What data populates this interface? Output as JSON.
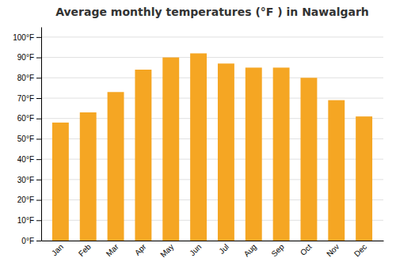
{
  "chart_data": {
    "type": "bar",
    "title": "Average monthly temperatures (°F ) in Nawalgarh",
    "categories": [
      "Jan",
      "Feb",
      "Mar",
      "Apr",
      "May",
      "Jun",
      "Jul",
      "Aug",
      "Sep",
      "Oct",
      "Nov",
      "Dec"
    ],
    "values": [
      58,
      63,
      73,
      84,
      90,
      92,
      87,
      85,
      85,
      80,
      69,
      61
    ],
    "color": "#F5A623",
    "ylim": [
      0,
      105
    ],
    "yticks": [
      {
        "value": 0,
        "label": "0°F"
      },
      {
        "value": 10,
        "label": "10°F"
      },
      {
        "value": 20,
        "label": "20°F"
      },
      {
        "value": 30,
        "label": "30°F"
      },
      {
        "value": 40,
        "label": "40°F"
      },
      {
        "value": 50,
        "label": "50°F"
      },
      {
        "value": 60,
        "label": "60°F"
      },
      {
        "value": 70,
        "label": "70°F"
      },
      {
        "value": 80,
        "label": "80°F"
      },
      {
        "value": 90,
        "label": "90°F"
      },
      {
        "value": 100,
        "label": "100°F"
      }
    ],
    "grid": true
  }
}
